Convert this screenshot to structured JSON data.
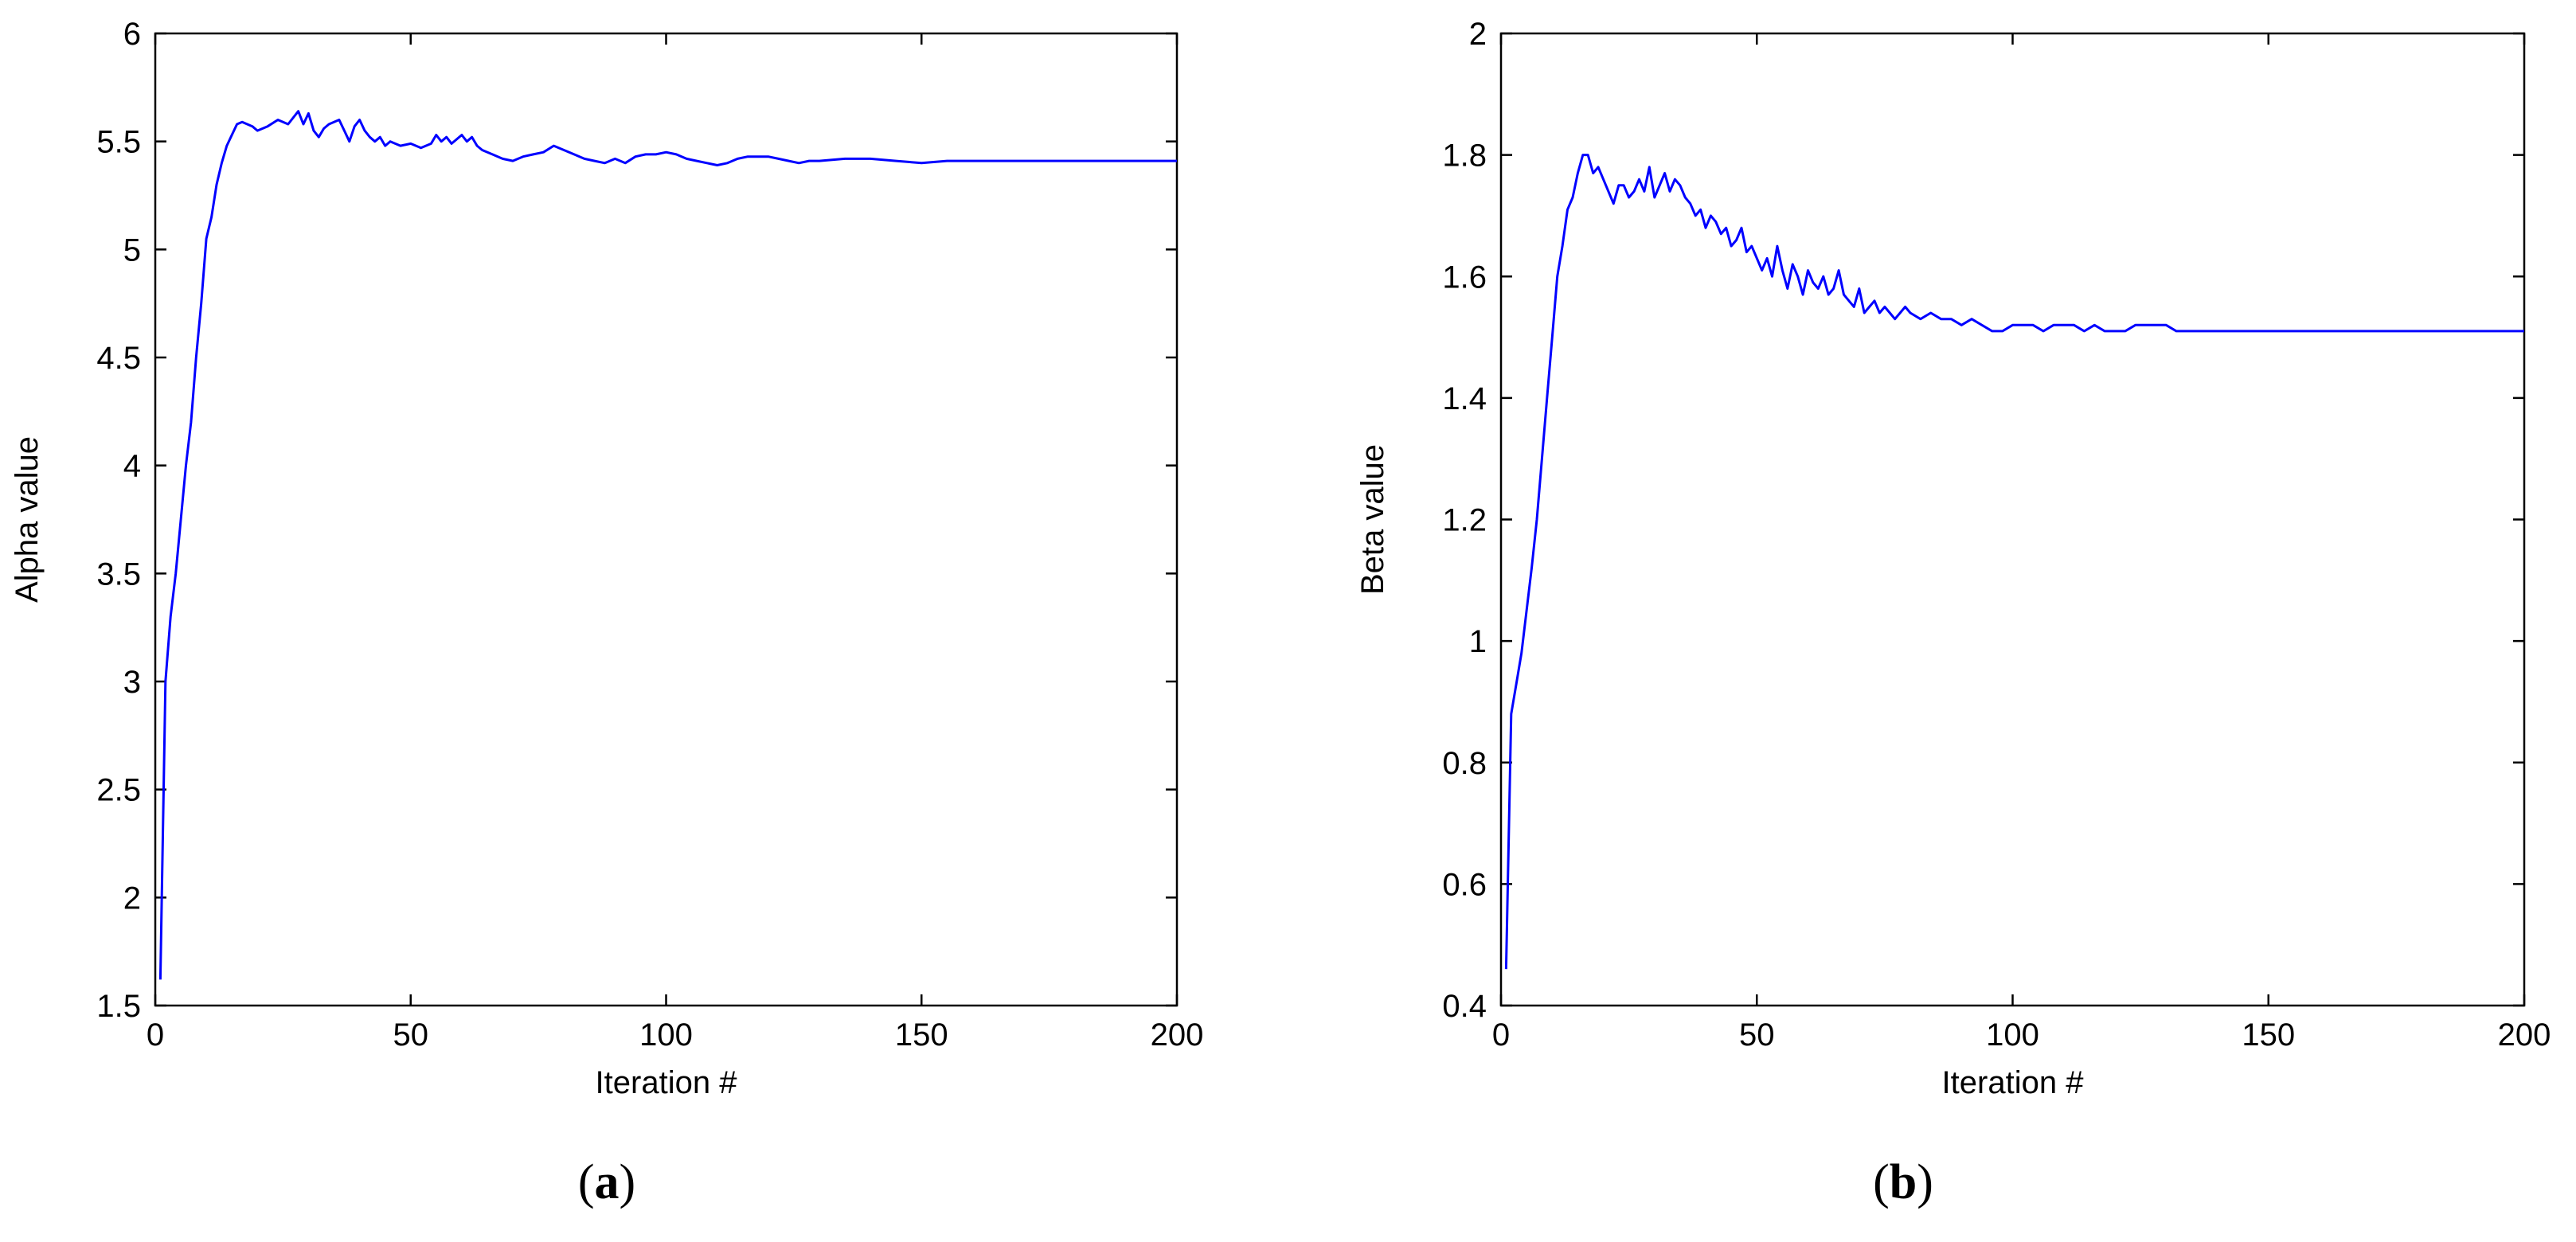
{
  "chart_data": [
    {
      "type": "line",
      "caption_letter": "a",
      "xlabel": "Iteration #",
      "ylabel": "Alpha value",
      "xlim": [
        0,
        200
      ],
      "ylim": [
        1.5,
        6
      ],
      "xticks": [
        "0",
        "50",
        "100",
        "150",
        "200"
      ],
      "yticks": [
        "1.5",
        "2",
        "2.5",
        "3",
        "3.5",
        "4",
        "4.5",
        "5",
        "5.5",
        "6"
      ],
      "grid": false,
      "line_color": "#0000ff",
      "series": [
        {
          "x": [
            1,
            2,
            3,
            4,
            5,
            6,
            7,
            8,
            9,
            10,
            11,
            12,
            13,
            14,
            15,
            16,
            17,
            18,
            19,
            20,
            22,
            24,
            26,
            28,
            29,
            30,
            31,
            32,
            33,
            34,
            36,
            37,
            38,
            39,
            40,
            41,
            42,
            43,
            44,
            45,
            46,
            48,
            50,
            52,
            54,
            55,
            56,
            57,
            58,
            60,
            61,
            62,
            63,
            64,
            66,
            68,
            70,
            72,
            74,
            76,
            78,
            80,
            82,
            84,
            86,
            88,
            90,
            92,
            94,
            96,
            98,
            100,
            102,
            104,
            106,
            108,
            110,
            112,
            114,
            116,
            118,
            120,
            122,
            124,
            126,
            128,
            130,
            135,
            140,
            145,
            150,
            155,
            160,
            165,
            170,
            175,
            180,
            185,
            190,
            195,
            200
          ],
          "y": [
            1.62,
            3.0,
            3.3,
            3.5,
            3.75,
            4.0,
            4.2,
            4.5,
            4.75,
            5.05,
            5.15,
            5.3,
            5.4,
            5.48,
            5.53,
            5.58,
            5.59,
            5.58,
            5.57,
            5.55,
            5.57,
            5.6,
            5.58,
            5.64,
            5.58,
            5.63,
            5.55,
            5.52,
            5.56,
            5.58,
            5.6,
            5.55,
            5.5,
            5.57,
            5.6,
            5.55,
            5.52,
            5.5,
            5.52,
            5.48,
            5.5,
            5.48,
            5.49,
            5.47,
            5.49,
            5.53,
            5.5,
            5.52,
            5.49,
            5.53,
            5.5,
            5.52,
            5.48,
            5.46,
            5.44,
            5.42,
            5.41,
            5.43,
            5.44,
            5.45,
            5.48,
            5.46,
            5.44,
            5.42,
            5.41,
            5.4,
            5.42,
            5.4,
            5.43,
            5.44,
            5.44,
            5.45,
            5.44,
            5.42,
            5.41,
            5.4,
            5.39,
            5.4,
            5.42,
            5.43,
            5.43,
            5.43,
            5.42,
            5.41,
            5.4,
            5.41,
            5.41,
            5.42,
            5.42,
            5.41,
            5.4,
            5.41,
            5.41,
            5.41,
            5.41,
            5.41,
            5.41,
            5.41,
            5.41,
            5.41,
            5.41
          ]
        }
      ]
    },
    {
      "type": "line",
      "caption_letter": "b",
      "xlabel": "Iteration #",
      "ylabel": "Beta value",
      "xlim": [
        0,
        200
      ],
      "ylim": [
        0.4,
        2
      ],
      "xticks": [
        "0",
        "50",
        "100",
        "150",
        "200"
      ],
      "yticks": [
        "0.4",
        "0.6",
        "0.8",
        "1",
        "1.2",
        "1.4",
        "1.6",
        "1.8",
        "2"
      ],
      "grid": false,
      "line_color": "#0000ff",
      "series": [
        {
          "x": [
            1,
            2,
            3,
            4,
            5,
            6,
            7,
            8,
            9,
            10,
            11,
            12,
            13,
            14,
            15,
            16,
            17,
            18,
            19,
            20,
            21,
            22,
            23,
            24,
            25,
            26,
            27,
            28,
            29,
            30,
            31,
            32,
            33,
            34,
            35,
            36,
            37,
            38,
            39,
            40,
            41,
            42,
            43,
            44,
            45,
            46,
            47,
            48,
            49,
            50,
            51,
            52,
            53,
            54,
            55,
            56,
            57,
            58,
            59,
            60,
            61,
            62,
            63,
            64,
            65,
            66,
            67,
            68,
            69,
            70,
            71,
            72,
            73,
            74,
            75,
            76,
            77,
            78,
            79,
            80,
            82,
            84,
            86,
            88,
            90,
            92,
            94,
            96,
            98,
            100,
            102,
            104,
            106,
            108,
            110,
            112,
            114,
            116,
            118,
            120,
            122,
            124,
            126,
            128,
            130,
            132,
            134,
            136,
            138,
            140,
            145,
            150,
            155,
            160,
            165,
            170,
            175,
            180,
            185,
            190,
            195,
            200
          ],
          "y": [
            0.46,
            0.88,
            0.93,
            0.98,
            1.05,
            1.12,
            1.2,
            1.3,
            1.4,
            1.5,
            1.6,
            1.65,
            1.71,
            1.73,
            1.77,
            1.8,
            1.8,
            1.77,
            1.78,
            1.76,
            1.74,
            1.72,
            1.75,
            1.75,
            1.73,
            1.74,
            1.76,
            1.74,
            1.78,
            1.73,
            1.75,
            1.77,
            1.74,
            1.76,
            1.75,
            1.73,
            1.72,
            1.7,
            1.71,
            1.68,
            1.7,
            1.69,
            1.67,
            1.68,
            1.65,
            1.66,
            1.68,
            1.64,
            1.65,
            1.63,
            1.61,
            1.63,
            1.6,
            1.65,
            1.61,
            1.58,
            1.62,
            1.6,
            1.57,
            1.61,
            1.59,
            1.58,
            1.6,
            1.57,
            1.58,
            1.61,
            1.57,
            1.56,
            1.55,
            1.58,
            1.54,
            1.55,
            1.56,
            1.54,
            1.55,
            1.54,
            1.53,
            1.54,
            1.55,
            1.54,
            1.53,
            1.54,
            1.53,
            1.53,
            1.52,
            1.53,
            1.52,
            1.51,
            1.51,
            1.52,
            1.52,
            1.52,
            1.51,
            1.52,
            1.52,
            1.52,
            1.51,
            1.52,
            1.51,
            1.51,
            1.51,
            1.52,
            1.52,
            1.52,
            1.52,
            1.51,
            1.51,
            1.51,
            1.51,
            1.51,
            1.51,
            1.51,
            1.51,
            1.51,
            1.51,
            1.51,
            1.51,
            1.51,
            1.51,
            1.51,
            1.51,
            1.51
          ]
        }
      ]
    }
  ]
}
